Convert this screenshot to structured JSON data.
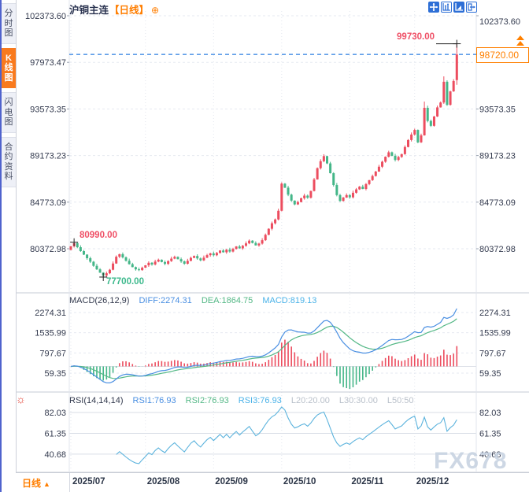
{
  "window": {
    "title_symbol": "沪铜主连",
    "title_period": "【日线】",
    "add_icon": "⊕"
  },
  "sidebar": {
    "items": [
      {
        "label": "分时图",
        "selected": false
      },
      {
        "label": "K线图",
        "selected": true
      },
      {
        "label": "闪电图",
        "selected": false
      },
      {
        "label": "合约资料",
        "selected": false
      }
    ]
  },
  "toolbar": {
    "icons": [
      "crosshair-move-icon",
      "axis-scale-icon",
      "axis-draw-icon",
      "pop-out-icon"
    ]
  },
  "bottom_bar": {
    "period_label": "日线",
    "arrow": "▲"
  },
  "watermark": "FX678",
  "colors": {
    "up": "#ec4d5f",
    "down": "#44b688",
    "dif_line": "#4a8fe2",
    "dea_line": "#54b886",
    "macd_text": "#4ab2e8",
    "rsi_line": "#5cb3dd",
    "muted": "#b9c0ca",
    "axis_text": "#333a4e",
    "orange": "#ff7e00",
    "label_red": "#ef5066",
    "label_green": "#3cb98c",
    "last_price_line": "#2a7de1",
    "icon_blue": "#2e6fd6",
    "watermark": "#c8d3e2"
  },
  "chart_data": [
    {
      "type": "candlestick",
      "symbol": "沪铜主连",
      "period": "日线",
      "y_ticks": [
        {
          "label": "102373.60",
          "value": 102373.6
        },
        {
          "label": "97973.47",
          "value": 97973.47
        },
        {
          "label": "93573.35",
          "value": 93573.35
        },
        {
          "label": "89173.23",
          "value": 89173.23
        },
        {
          "label": "84773.09",
          "value": 84773.09
        },
        {
          "label": "80372.98",
          "value": 80372.98
        }
      ],
      "x_ticks": [
        {
          "label": "2025/07",
          "day": 0
        },
        {
          "label": "2025/08",
          "day": 23
        },
        {
          "label": "2025/09",
          "day": 44
        },
        {
          "label": "2025/10",
          "day": 65
        },
        {
          "label": "2025/11",
          "day": 86
        },
        {
          "label": "2025/12",
          "day": 106
        }
      ],
      "open_first": 80260,
      "closes": [
        80610,
        80900,
        80520,
        80150,
        79820,
        79480,
        79150,
        78760,
        78430,
        78120,
        77850,
        78060,
        78390,
        78980,
        79620,
        79860,
        79560,
        79240,
        78920,
        78640,
        78430,
        78360,
        78590,
        78810,
        79050,
        78890,
        79160,
        79340,
        79120,
        78950,
        79210,
        79440,
        79610,
        79390,
        79180,
        78960,
        79230,
        79510,
        79690,
        79460,
        79280,
        79530,
        79770,
        79940,
        79760,
        79980,
        80210,
        80040,
        80290,
        80110,
        80360,
        80590,
        80410,
        80660,
        80880,
        81140,
        80920,
        80690,
        80860,
        81180,
        81690,
        82260,
        82780,
        83140,
        83960,
        86520,
        86140,
        85480,
        84920,
        84560,
        84780,
        85140,
        85390,
        85190,
        85830,
        86920,
        87980,
        88640,
        89120,
        88430,
        87510,
        86390,
        85440,
        84890,
        85210,
        85440,
        85230,
        85660,
        85980,
        86240,
        86020,
        86480,
        86850,
        87240,
        87660,
        88120,
        88590,
        89060,
        89480,
        89150,
        88760,
        89040,
        89310,
        89980,
        90640,
        91160,
        91590,
        90420,
        91080,
        93680,
        92440,
        91980,
        92860,
        93720,
        94180,
        96140,
        93960,
        95230,
        96210,
        98720
      ],
      "special_days": {
        "1": {
          "high": 80990
        },
        "10": {
          "low": 77700
        },
        "78": {
          "high": 89300
        },
        "109": {
          "high": 94270
        },
        "115": {
          "high": 96650
        },
        "119": {
          "open": 96300,
          "high": 99730,
          "low": 95850
        }
      },
      "annotations": {
        "peak_label": "99730.00",
        "peak_value": 99730.0,
        "peak_day": 119,
        "open_high_label": "80990.00",
        "open_high_value": 80990.0,
        "open_high_day": 1,
        "low_label": "77700.00",
        "low_value": 77700.0,
        "low_day": 10,
        "last_price_label": "98720.00",
        "last_price_value": 98720.0
      }
    },
    {
      "type": "macd-panel",
      "title": "MACD(26,12,9)",
      "params": [
        26,
        12,
        9
      ],
      "legend_diff": "DIFF:2274.31",
      "legend_dea": "DEA:1864.75",
      "legend_macd": "MACD:819.13",
      "values": {
        "diff": 2274.31,
        "dea": 1864.75,
        "macd": 819.13
      },
      "y_ticks": [
        {
          "label": "2274.31",
          "value": 2274.31
        },
        {
          "label": "1535.99",
          "value": 1535.99
        },
        {
          "label": "797.67",
          "value": 797.67
        },
        {
          "label": "59.35",
          "value": 59.35
        }
      ]
    },
    {
      "type": "rsi-panel",
      "title": "RSI(14,14,14)",
      "params": [
        14,
        14,
        14
      ],
      "legend_rsi1": "RSI1:76.93",
      "legend_rsi2": "RSI2:76.93",
      "legend_rsi3": "RSI3:76.93",
      "legend_l20": "L20:20.00",
      "legend_l30": "L30:30.00",
      "legend_l50": "L50:50",
      "values": {
        "rsi1": 76.93,
        "rsi2": 76.93,
        "rsi3": 76.93,
        "l20": 20.0,
        "l30": 30.0,
        "l50": 50.0
      },
      "y_ticks": [
        {
          "label": "82.03",
          "value": 82.03
        },
        {
          "label": "61.35",
          "value": 61.35
        },
        {
          "label": "40.68",
          "value": 40.68
        }
      ]
    }
  ]
}
